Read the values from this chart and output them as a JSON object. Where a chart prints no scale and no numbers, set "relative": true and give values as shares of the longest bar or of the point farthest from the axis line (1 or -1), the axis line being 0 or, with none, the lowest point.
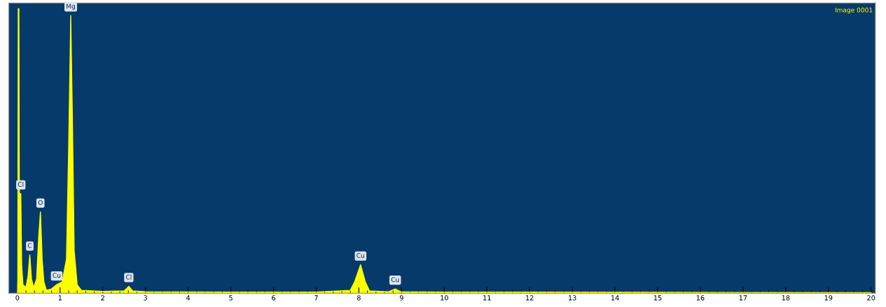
{
  "chart_data": {
    "type": "area",
    "relative": true,
    "xlim": [
      -0.2,
      20.1
    ],
    "xticks": [
      0,
      1,
      2,
      3,
      4,
      5,
      6,
      7,
      8,
      9,
      10,
      11,
      12,
      13,
      14,
      15,
      16,
      17,
      18,
      19,
      20
    ],
    "grid": false,
    "legend": false,
    "x": [
      0,
      0.01,
      0.02,
      0.035,
      0.045,
      0.08,
      0.1,
      0.13,
      0.2,
      0.25,
      0.29,
      0.33,
      0.38,
      0.45,
      0.5,
      0.54,
      0.58,
      0.62,
      0.68,
      0.8,
      0.92,
      1.05,
      1.15,
      1.2,
      1.25,
      1.29,
      1.33,
      1.4,
      1.5,
      2.0,
      2.5,
      2.61,
      2.7,
      3.0,
      5.0,
      7.0,
      7.8,
      7.9,
      8.04,
      8.15,
      8.25,
      8.7,
      8.85,
      8.98,
      10,
      15,
      20
    ],
    "series": [
      {
        "color": "#ffff00",
        "values": [
          0,
          0.05,
          1.0,
          1.0,
          0.35,
          0.35,
          0.1,
          0.03,
          0.02,
          0.06,
          0.135,
          0.05,
          0.02,
          0.05,
          0.2,
          0.286,
          0.12,
          0.04,
          0.01,
          0.015,
          0.03,
          0.04,
          0.12,
          0.5,
          0.976,
          0.6,
          0.15,
          0.03,
          0.01,
          0.006,
          0.008,
          0.024,
          0.008,
          0.005,
          0.004,
          0.004,
          0.01,
          0.04,
          0.1,
          0.04,
          0.008,
          0.005,
          0.015,
          0.005,
          0.004,
          0.003,
          0.002
        ]
      }
    ],
    "annotations": [
      {
        "text": "Cl",
        "x": 0.08,
        "y": 0.35
      },
      {
        "text": "C",
        "x": 0.29,
        "y": 0.135
      },
      {
        "text": "O",
        "x": 0.54,
        "y": 0.286
      },
      {
        "text": "Cu",
        "x": 0.92,
        "y": 0.03
      },
      {
        "text": "Mg",
        "x": 1.25,
        "y": 0.976
      },
      {
        "text": "Cl",
        "x": 2.61,
        "y": 0.024
      },
      {
        "text": "Cu",
        "x": 8.04,
        "y": 0.1
      },
      {
        "text": "Cu",
        "x": 8.85,
        "y": 0.015
      },
      "Image 0001"
    ]
  }
}
